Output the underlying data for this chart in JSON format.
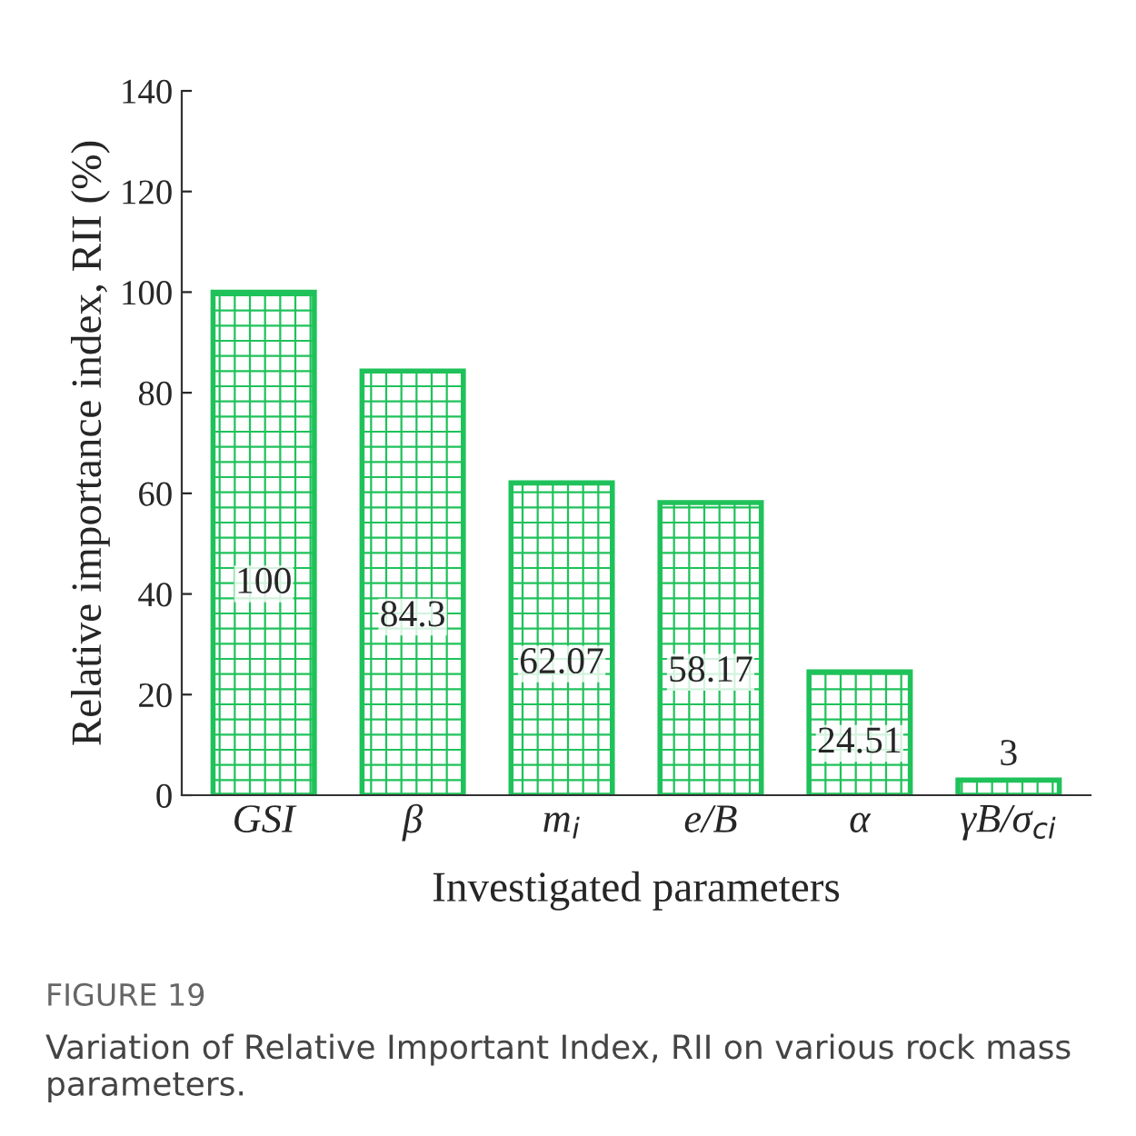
{
  "chart_data": {
    "type": "bar",
    "categories": [
      "GSI",
      "β",
      "m$_{i}$",
      "e/B",
      "α",
      "γB/σ$_{ci}$"
    ],
    "values": [
      100,
      84.3,
      62.07,
      58.17,
      24.51,
      3
    ],
    "color": "#1fc25a",
    "xlabel": "Investigated parameters",
    "ylabel": "Relative importance index, RII (%)",
    "ylim": [
      0,
      140
    ],
    "yticks": [
      0,
      20,
      40,
      60,
      80,
      100,
      120,
      140
    ],
    "data_labels": true,
    "annotations": [
      "FIGURE 19",
      "Variation of Relative Important Index, RII on various rock mass parameters."
    ]
  }
}
